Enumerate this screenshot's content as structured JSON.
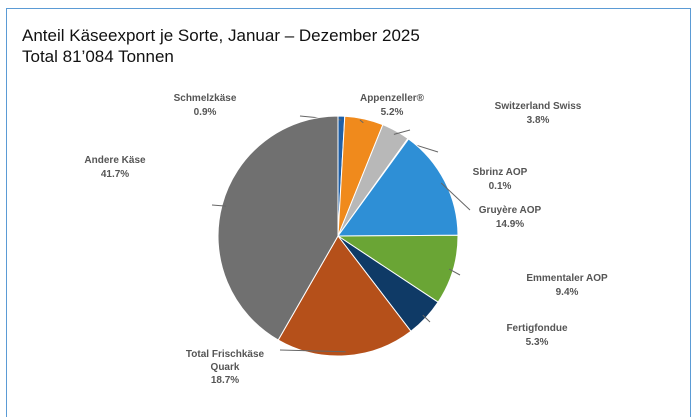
{
  "chart_data": {
    "type": "pie",
    "title": "Anteil Käseexport je Sorte, Januar – Dezember 2025",
    "subtitle": "Total 81’084 Tonnen",
    "categories": [
      "Schmelzkäse",
      "Appenzeller®",
      "Switzerland Swiss",
      "Sbrinz AOP",
      "Gruyère AOP",
      "Emmentaler AOP",
      "Fertigfondue",
      "Total Frischkäse Quark",
      "Andere Käse"
    ],
    "values": [
      0.9,
      5.2,
      3.8,
      0.1,
      14.9,
      9.4,
      5.3,
      18.7,
      41.7
    ],
    "value_labels": [
      "0.9%",
      "5.2%",
      "3.8%",
      "0.1%",
      "14.9%",
      "9.4%",
      "5.3%",
      "18.7%",
      "41.7%"
    ],
    "colors": [
      "#1f5fa6",
      "#f08a1c",
      "#b8b8b8",
      "#7fa7d0",
      "#2e8fd6",
      "#6aa535",
      "#0f3a66",
      "#b5501a",
      "#707070"
    ]
  }
}
